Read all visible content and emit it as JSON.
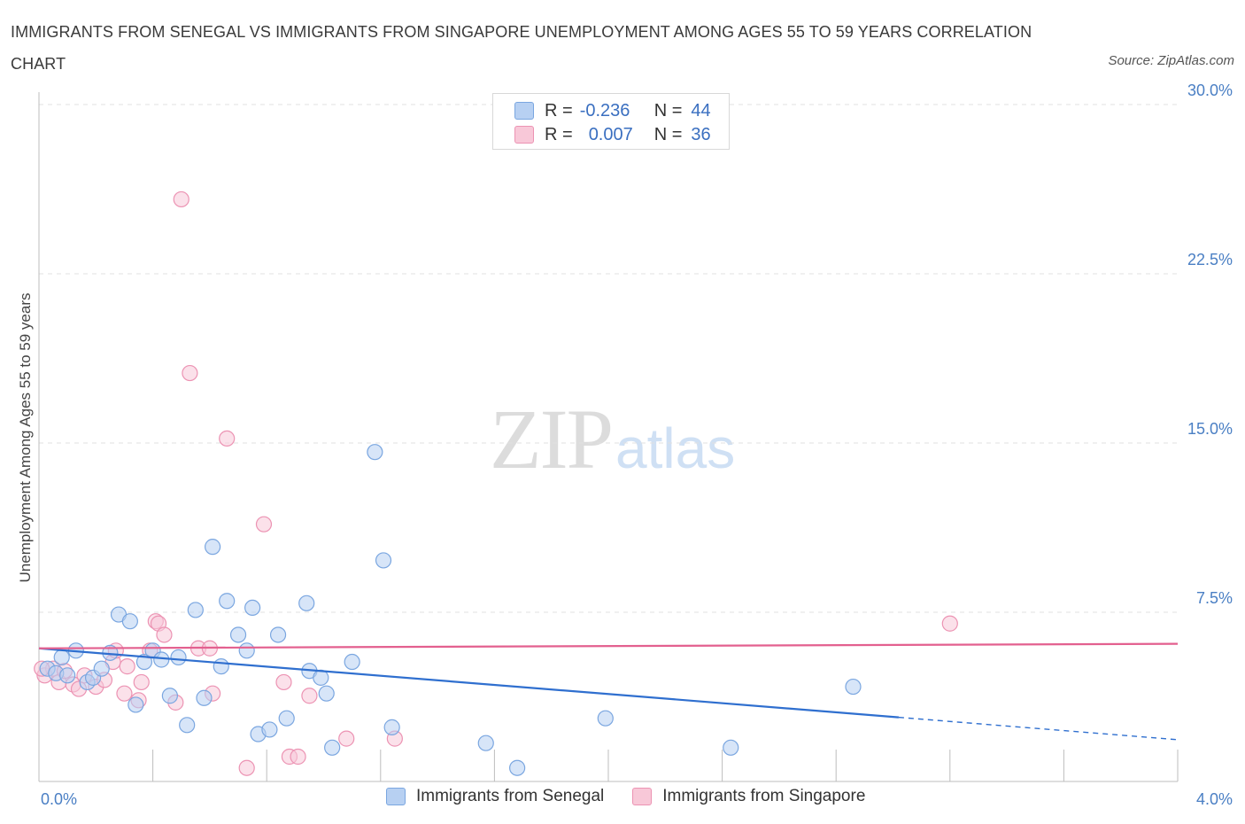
{
  "header": {
    "title": "IMMIGRANTS FROM SENEGAL VS IMMIGRANTS FROM SINGAPORE UNEMPLOYMENT AMONG AGES 55 TO 59 YEARS CORRELATION CHART",
    "source": "Source: ZipAtlas.com"
  },
  "watermark": {
    "zip": "ZIP",
    "atlas": "atlas"
  },
  "legend": {
    "senegal": {
      "r_label": "R =",
      "r_value": "-0.236",
      "n_label": "N =",
      "n_value": "44"
    },
    "singapore": {
      "r_label": "R =",
      "r_value": "0.007",
      "n_label": "N =",
      "n_value": "36"
    }
  },
  "colors": {
    "senegal_fill": "#b7d0f2",
    "senegal_stroke": "#7aa6e0",
    "senegal_line": "#2f6fcf",
    "singapore_fill": "#f8c8d8",
    "singapore_stroke": "#ec93b3",
    "singapore_line": "#e3608f",
    "tick": "#4a7fc4",
    "grid": "#e0e0e0"
  },
  "chart_data": {
    "type": "scatter",
    "title": "IMMIGRANTS FROM SENEGAL VS IMMIGRANTS FROM SINGAPORE UNEMPLOYMENT AMONG AGES 55 TO 59 YEARS CORRELATION CHART",
    "xlabel": "",
    "ylabel": "Unemployment Among Ages 55 to 59 years",
    "xlim": [
      0,
      4.0
    ],
    "ylim": [
      0,
      30
    ],
    "x_tick_labels": [
      "0.0%",
      "4.0%"
    ],
    "y_ticks": [
      7.5,
      15.0,
      22.5,
      30.0
    ],
    "y_tick_labels": [
      "7.5%",
      "15.0%",
      "22.5%",
      "30.0%"
    ],
    "grid": true,
    "series": [
      {
        "name": "Immigrants from Senegal",
        "trend": {
          "x_start": 0.0,
          "y_start": 5.9,
          "x_solid_end": 3.02,
          "x_end": 4.0,
          "y_end": 1.85
        },
        "points": [
          [
            0.03,
            5.0
          ],
          [
            0.06,
            4.8
          ],
          [
            0.08,
            5.5
          ],
          [
            0.1,
            4.7
          ],
          [
            0.13,
            5.8
          ],
          [
            0.17,
            4.4
          ],
          [
            0.19,
            4.6
          ],
          [
            0.22,
            5.0
          ],
          [
            0.25,
            5.7
          ],
          [
            0.28,
            7.4
          ],
          [
            0.32,
            7.1
          ],
          [
            0.34,
            3.4
          ],
          [
            0.37,
            5.3
          ],
          [
            0.4,
            5.8
          ],
          [
            0.43,
            5.4
          ],
          [
            0.46,
            3.8
          ],
          [
            0.49,
            5.5
          ],
          [
            0.52,
            2.5
          ],
          [
            0.55,
            7.6
          ],
          [
            0.58,
            3.7
          ],
          [
            0.61,
            10.4
          ],
          [
            0.64,
            5.1
          ],
          [
            0.66,
            8.0
          ],
          [
            0.7,
            6.5
          ],
          [
            0.73,
            5.8
          ],
          [
            0.75,
            7.7
          ],
          [
            0.77,
            2.1
          ],
          [
            0.81,
            2.3
          ],
          [
            0.84,
            6.5
          ],
          [
            0.87,
            2.8
          ],
          [
            0.94,
            7.9
          ],
          [
            0.95,
            4.9
          ],
          [
            0.99,
            4.6
          ],
          [
            1.01,
            3.9
          ],
          [
            1.03,
            1.5
          ],
          [
            1.1,
            5.3
          ],
          [
            1.18,
            14.6
          ],
          [
            1.21,
            9.8
          ],
          [
            1.24,
            2.4
          ],
          [
            1.57,
            1.7
          ],
          [
            1.68,
            0.6
          ],
          [
            1.99,
            2.8
          ],
          [
            2.43,
            1.5
          ],
          [
            2.86,
            4.2
          ]
        ]
      },
      {
        "name": "Immigrants from Singapore",
        "trend": {
          "x_start": 0.0,
          "y_start": 5.9,
          "x_end": 4.0,
          "y_end": 6.1
        },
        "points": [
          [
            0.02,
            4.7
          ],
          [
            0.05,
            5.0
          ],
          [
            0.07,
            4.4
          ],
          [
            0.09,
            4.9
          ],
          [
            0.12,
            4.3
          ],
          [
            0.14,
            4.1
          ],
          [
            0.16,
            4.7
          ],
          [
            0.2,
            4.2
          ],
          [
            0.23,
            4.5
          ],
          [
            0.26,
            5.3
          ],
          [
            0.27,
            5.8
          ],
          [
            0.3,
            3.9
          ],
          [
            0.31,
            5.1
          ],
          [
            0.35,
            3.6
          ],
          [
            0.36,
            4.4
          ],
          [
            0.39,
            5.8
          ],
          [
            0.41,
            7.1
          ],
          [
            0.42,
            7.0
          ],
          [
            0.44,
            6.5
          ],
          [
            0.48,
            3.5
          ],
          [
            0.5,
            25.8
          ],
          [
            0.53,
            18.1
          ],
          [
            0.56,
            5.9
          ],
          [
            0.6,
            5.9
          ],
          [
            0.61,
            3.9
          ],
          [
            0.66,
            15.2
          ],
          [
            0.73,
            0.6
          ],
          [
            0.79,
            11.4
          ],
          [
            0.86,
            4.4
          ],
          [
            0.88,
            1.1
          ],
          [
            0.91,
            1.1
          ],
          [
            0.95,
            3.8
          ],
          [
            1.08,
            1.9
          ],
          [
            1.25,
            1.9
          ],
          [
            3.2,
            7.0
          ],
          [
            0.01,
            5.0
          ]
        ]
      }
    ]
  },
  "bottom_legend": {
    "senegal_label": "Immigrants from Senegal",
    "singapore_label": "Immigrants from Singapore"
  }
}
